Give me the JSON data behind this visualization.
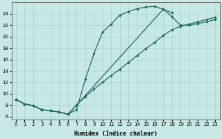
{
  "xlabel": "Humidex (Indice chaleur)",
  "bg_color": "#c8e8e5",
  "grid_color": "#a8d0cc",
  "line_color": "#1a6b5a",
  "markersize": 2.2,
  "linewidth": 0.9,
  "xlim": [
    -0.5,
    23.5
  ],
  "ylim": [
    5.5,
    26.0
  ],
  "xticks": [
    0,
    1,
    2,
    3,
    4,
    5,
    6,
    7,
    8,
    9,
    10,
    11,
    12,
    13,
    14,
    15,
    16,
    17,
    18,
    19,
    20,
    21,
    22,
    23
  ],
  "yticks": [
    6,
    8,
    10,
    12,
    14,
    16,
    18,
    20,
    22,
    24
  ],
  "curve1_x": [
    0,
    1,
    2,
    3,
    4,
    5,
    6,
    7,
    8,
    9,
    10,
    11,
    12,
    13,
    14,
    15,
    16,
    17,
    18
  ],
  "curve1_y": [
    9.0,
    8.2,
    7.9,
    7.2,
    7.0,
    6.8,
    6.4,
    7.2,
    12.5,
    17.0,
    20.8,
    22.2,
    23.8,
    24.4,
    24.9,
    25.2,
    25.3,
    24.8,
    24.2
  ],
  "curve2_x": [
    0,
    1,
    2,
    3,
    4,
    5,
    6,
    7,
    8,
    9,
    10,
    11,
    12,
    13,
    14,
    15,
    16,
    17,
    18,
    19,
    20,
    21,
    22,
    23
  ],
  "curve2_y": [
    9.0,
    8.2,
    7.9,
    7.2,
    7.0,
    6.8,
    6.4,
    8.0,
    9.5,
    10.8,
    12.0,
    13.2,
    14.3,
    15.5,
    16.7,
    17.9,
    19.0,
    20.2,
    21.2,
    21.8,
    22.2,
    22.6,
    23.0,
    23.4
  ],
  "curve3_x": [
    0,
    1,
    2,
    3,
    4,
    5,
    6,
    7,
    17,
    18,
    19,
    20,
    21,
    22,
    23
  ],
  "curve3_y": [
    9.0,
    8.2,
    7.9,
    7.2,
    7.0,
    6.8,
    6.4,
    8.0,
    24.8,
    23.5,
    22.0,
    22.0,
    22.3,
    22.6,
    23.0
  ]
}
